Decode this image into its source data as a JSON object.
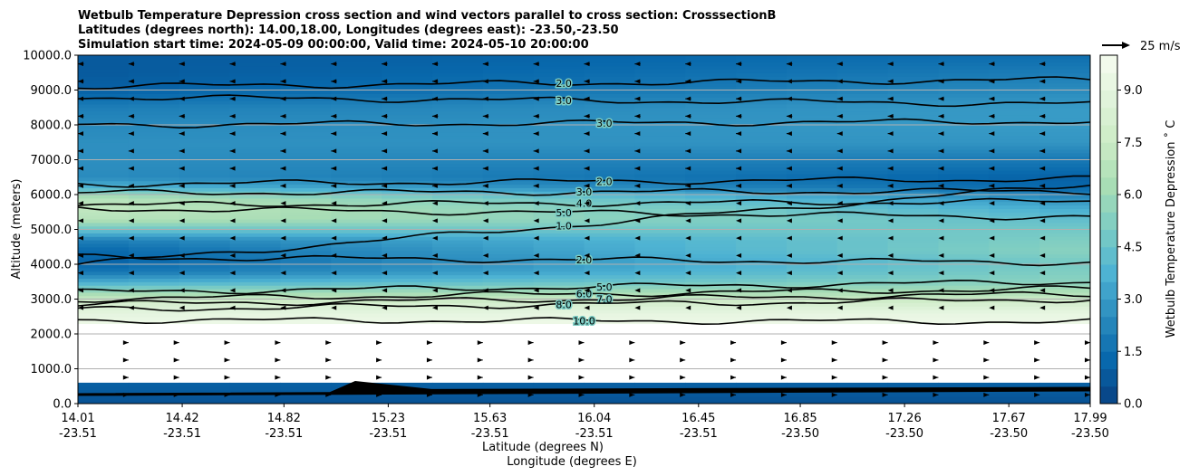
{
  "chart_data": {
    "type": "heatmap",
    "title_lines": [
      "Wetbulb Temperature Depression cross section and wind vectors parallel to cross section: CrosssectionB",
      "Latitudes (degrees north): 14.00,18.00, Longitudes (degrees east): -23.50,-23.50",
      "Simulation start time: 2024-05-09 00:00:00, Valid time: 2024-05-10 20:00:00"
    ],
    "xlabel": "Latitude (degrees N)",
    "xlabel2": "Longitude (degrees E)",
    "ylabel": "Altitude (meters)",
    "x_ticks": [
      {
        "lat": "14.01",
        "lon": "-23.51",
        "v": 14.01
      },
      {
        "lat": "14.42",
        "lon": "-23.51",
        "v": 14.42
      },
      {
        "lat": "14.82",
        "lon": "-23.51",
        "v": 14.82
      },
      {
        "lat": "15.23",
        "lon": "-23.51",
        "v": 15.23
      },
      {
        "lat": "15.63",
        "lon": "-23.51",
        "v": 15.63
      },
      {
        "lat": "16.04",
        "lon": "-23.51",
        "v": 16.04
      },
      {
        "lat": "16.45",
        "lon": "-23.51",
        "v": 16.45
      },
      {
        "lat": "16.85",
        "lon": "-23.50",
        "v": 16.85
      },
      {
        "lat": "17.26",
        "lon": "-23.50",
        "v": 17.26
      },
      {
        "lat": "17.67",
        "lon": "-23.50",
        "v": 17.67
      },
      {
        "lat": "17.99",
        "lon": "-23.50",
        "v": 17.99
      }
    ],
    "xlim": [
      14.01,
      17.99
    ],
    "y_ticks": [
      "0.0",
      "1000.0",
      "2000.0",
      "3000.0",
      "4000.0",
      "5000.0",
      "6000.0",
      "7000.0",
      "8000.0",
      "9000.0",
      "10000.0"
    ],
    "ylim": [
      0,
      10000
    ],
    "grid": "horizontal",
    "colorbar": {
      "label": "Wetbulb Temperature Depression ˚ C",
      "ticks": [
        "0.0",
        "1.5",
        "3.0",
        "4.5",
        "6.0",
        "7.5",
        "9.0"
      ],
      "range": [
        0,
        10
      ],
      "colormap": "GnBu_r",
      "colors": [
        "#084081",
        "#0868ac",
        "#2b8cbe",
        "#4eb3d3",
        "#7bccc4",
        "#a8ddb5",
        "#ccebc5",
        "#e0f3db",
        "#f7fcf0"
      ]
    },
    "quiver_key": {
      "label": "25 m/s",
      "speed": 25
    },
    "depression_profile": {
      "description_units": "degC at altitude (m)",
      "altitude": [
        0,
        300,
        600,
        2000,
        2300,
        2600,
        2900,
        3200,
        3500,
        3800,
        4100,
        4400,
        4700,
        5000,
        5300,
        5600,
        5900,
        6200,
        6500,
        7000,
        7500,
        8000,
        8500,
        9000,
        9500,
        10000
      ],
      "west": [
        0.5,
        0.8,
        1.0,
        null,
        9.5,
        9.0,
        8.0,
        6.0,
        3.5,
        1.6,
        1.0,
        1.2,
        2.0,
        4.5,
        6.8,
        7.2,
        6.8,
        4.0,
        2.5,
        2.6,
        2.6,
        2.4,
        2.0,
        1.0,
        0.8,
        0.8
      ],
      "east": [
        0.5,
        0.8,
        1.0,
        null,
        9.5,
        9.2,
        8.0,
        6.5,
        5.5,
        5.2,
        5.0,
        5.5,
        5.2,
        4.8,
        4.2,
        3.5,
        2.5,
        1.2,
        1.0,
        1.8,
        2.8,
        3.0,
        3.0,
        2.5,
        2.0,
        1.5
      ]
    },
    "contours": [
      {
        "label": "1.0",
        "alt_west": 4000,
        "alt_east": 6300
      },
      {
        "label": "2.0",
        "alt_west": 4200,
        "alt_east": 4050
      },
      {
        "label": "2.0",
        "alt_west": 6300,
        "alt_east": 6450
      },
      {
        "label": "2.0",
        "alt_west": 9100,
        "alt_east": 9300
      },
      {
        "label": "3.0",
        "alt_west": 6050,
        "alt_east": 6100
      },
      {
        "label": "3.0",
        "alt_west": 8000,
        "alt_east": 8100
      },
      {
        "label": "3.0",
        "alt_west": 8800,
        "alt_east": 8600
      },
      {
        "label": "4.0",
        "alt_west": 5700,
        "alt_east": 5800
      },
      {
        "label": "5.0",
        "alt_west": 3200,
        "alt_east": 3500
      },
      {
        "label": "5.0",
        "alt_west": 5600,
        "alt_east": 5350
      },
      {
        "label": "6.0",
        "alt_west": 3000,
        "alt_east": 3300
      },
      {
        "label": "7.0",
        "alt_west": 2850,
        "alt_east": 3150
      },
      {
        "label": "8.0",
        "alt_west": 2700,
        "alt_east": 3000
      },
      {
        "label": "10.0",
        "alt_west": 2400,
        "alt_east": 2350
      }
    ],
    "wind_vectors": [
      {
        "alt_min": 8000,
        "alt_max": 10000,
        "direction": "south",
        "speed": 4
      },
      {
        "alt_min": 6000,
        "alt_max": 8000,
        "direction": "south",
        "speed": 2
      },
      {
        "alt_min": 4000,
        "alt_max": 6000,
        "direction": "south",
        "speed": 1
      },
      {
        "alt_min": 2500,
        "alt_max": 4000,
        "direction": "south",
        "speed": 0.5
      },
      {
        "alt_min": 0,
        "alt_max": 2000,
        "direction": "north",
        "speed": 1.5
      }
    ]
  }
}
